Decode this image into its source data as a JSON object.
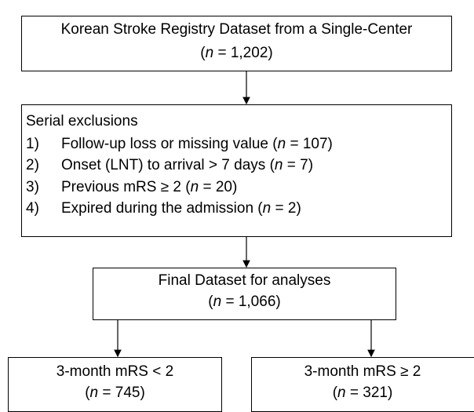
{
  "source": {
    "lines": [
      [
        {
          "text": "Korean Stroke Registry Dataset from a Single-Center"
        }
      ],
      [
        {
          "text": "("
        },
        {
          "text": "n",
          "italic": true
        },
        {
          "text": " = 1,202)"
        }
      ]
    ]
  },
  "exclusions": {
    "title": "Serial exclusions",
    "items": [
      {
        "number": "1)",
        "text": [
          {
            "text": "Follow-up loss or missing value ("
          },
          {
            "text": "n",
            "italic": true
          },
          {
            "text": " = 107)"
          }
        ]
      },
      {
        "number": "2)",
        "text": [
          {
            "text": "Onset (LNT) to arrival > 7 days ("
          },
          {
            "text": "n",
            "italic": true
          },
          {
            "text": " = 7)"
          }
        ]
      },
      {
        "number": "3)",
        "text": [
          {
            "text": "Previous mRS ≥ 2 ("
          },
          {
            "text": "n",
            "italic": true
          },
          {
            "text": " = 20)"
          }
        ]
      },
      {
        "number": "4)",
        "text": [
          {
            "text": "Expired during the admission ("
          },
          {
            "text": "n",
            "italic": true
          },
          {
            "text": " = 2)"
          }
        ]
      }
    ]
  },
  "final": {
    "lines": [
      [
        {
          "text": "Final Dataset for analyses"
        }
      ],
      [
        {
          "text": "("
        },
        {
          "text": "n",
          "italic": true
        },
        {
          "text": " = 1,066)"
        }
      ]
    ]
  },
  "outcomes": [
    {
      "lines": [
        [
          {
            "text": "3-month mRS < 2"
          }
        ],
        [
          {
            "text": "("
          },
          {
            "text": "n",
            "italic": true
          },
          {
            "text": " = 745)"
          }
        ]
      ]
    },
    {
      "lines": [
        [
          {
            "text": "3-month mRS ≥ 2"
          }
        ],
        [
          {
            "text": "("
          },
          {
            "text": "n",
            "italic": true
          },
          {
            "text": " = 321)"
          }
        ]
      ]
    }
  ]
}
